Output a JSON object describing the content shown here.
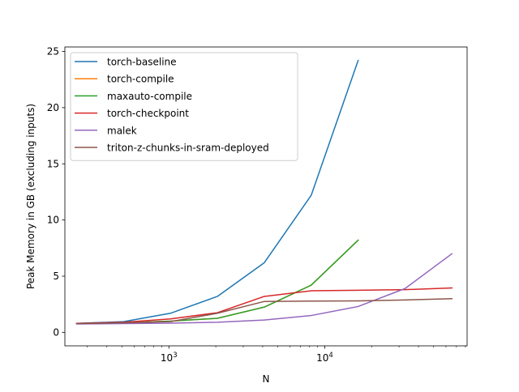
{
  "chart_data": {
    "type": "line",
    "title": "",
    "xlabel": "N",
    "ylabel": "Peak Memory in GB (excluding inputs)",
    "xscale": "log",
    "xlim": [
      215,
      82000
    ],
    "ylim": [
      -1.2,
      25.4
    ],
    "x_major_ticks": [
      {
        "value": 1000,
        "base": "10",
        "exp": "3"
      },
      {
        "value": 10000,
        "base": "10",
        "exp": "4"
      }
    ],
    "y_ticks": [
      0,
      5,
      10,
      15,
      20,
      25
    ],
    "grid": false,
    "legend_position": "upper-left",
    "series": [
      {
        "name": "torch-baseline",
        "color": "#1f77b4",
        "x": [
          256,
          512,
          1024,
          2048,
          4096,
          8192,
          16384
        ],
        "y": [
          0.8,
          0.95,
          1.7,
          3.2,
          6.2,
          12.2,
          24.2
        ]
      },
      {
        "name": "torch-compile",
        "color": "#ff7f0e",
        "x": [
          256,
          512,
          1024,
          2048,
          4096,
          8192,
          16384
        ],
        "y": [
          0.78,
          0.85,
          1.0,
          1.25,
          2.25,
          4.2,
          8.2
        ]
      },
      {
        "name": "maxauto-compile",
        "color": "#2ca02c",
        "x": [
          256,
          512,
          1024,
          2048,
          4096,
          8192,
          16384
        ],
        "y": [
          0.78,
          0.85,
          1.0,
          1.25,
          2.25,
          4.2,
          8.2
        ]
      },
      {
        "name": "torch-checkpoint",
        "color": "#d62728",
        "x": [
          256,
          512,
          1024,
          2048,
          4096,
          8192,
          16384,
          32768,
          65536
        ],
        "y": [
          0.8,
          0.9,
          1.2,
          1.75,
          3.2,
          3.7,
          3.75,
          3.8,
          3.95
        ]
      },
      {
        "name": "malek",
        "color": "#9467bd",
        "x": [
          256,
          512,
          1024,
          2048,
          4096,
          8192,
          16384,
          32768,
          65536
        ],
        "y": [
          0.75,
          0.78,
          0.82,
          0.9,
          1.1,
          1.5,
          2.3,
          3.9,
          7.0
        ]
      },
      {
        "name": "triton-z-chunks-in-sram-deployed",
        "color": "#8c564b",
        "x": [
          256,
          512,
          1024,
          2048,
          4096,
          8192,
          16384,
          32768,
          65536
        ],
        "y": [
          0.78,
          0.85,
          0.95,
          1.7,
          2.75,
          2.78,
          2.8,
          2.88,
          3.0
        ]
      }
    ]
  }
}
